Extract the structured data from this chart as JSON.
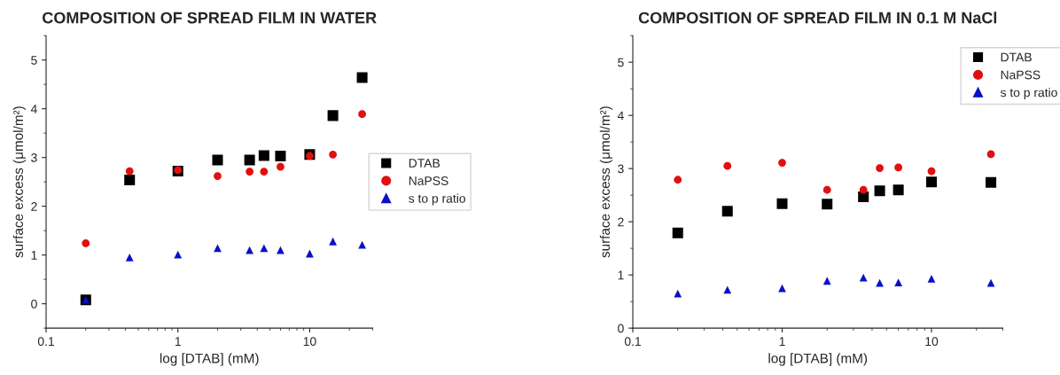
{
  "chart_data": [
    {
      "type": "scatter",
      "title": "COMPOSITION OF SPREAD FILM IN WATER",
      "xlabel": "log [DTAB] (mM)",
      "ylabel": "surface excess (μmol/m²)",
      "log": "x",
      "xlim": [
        0.1,
        30
      ],
      "xticks": [
        0.1,
        1,
        10
      ],
      "ylim": [
        -0.5,
        5.5
      ],
      "yticks": [
        0,
        1,
        2,
        3,
        4,
        5
      ],
      "grid": false,
      "legend": "right",
      "series": [
        {
          "name": "DTAB",
          "color": "#000000",
          "marker": "square",
          "x": [
            0.2,
            0.43,
            1,
            2,
            3.5,
            4.5,
            6,
            10,
            15,
            25
          ],
          "values": [
            0.08,
            2.54,
            2.72,
            2.95,
            2.95,
            3.04,
            3.03,
            3.06,
            3.86,
            4.64
          ]
        },
        {
          "name": "NaPSS",
          "color": "#e01010",
          "marker": "circle",
          "x": [
            0.2,
            0.43,
            1,
            2,
            3.5,
            4.5,
            6,
            10,
            15,
            25
          ],
          "values": [
            1.24,
            2.72,
            2.74,
            2.62,
            2.71,
            2.71,
            2.81,
            3.03,
            3.06,
            3.89
          ]
        },
        {
          "name": "s to p ratio",
          "color": "#0a10c8",
          "marker": "triangle",
          "x": [
            0.2,
            0.43,
            1,
            2,
            3.5,
            4.5,
            6,
            10,
            15,
            25
          ],
          "values": [
            0.08,
            0.95,
            1.01,
            1.14,
            1.1,
            1.14,
            1.1,
            1.03,
            1.28,
            1.21
          ]
        }
      ]
    },
    {
      "type": "scatter",
      "title": "COMPOSITION OF SPREAD FILM IN 0.1 M NaCl",
      "xlabel": "log [DTAB] (mM)",
      "ylabel": "surface excess (μmol/m²)",
      "log": "x",
      "xlim": [
        0.1,
        30
      ],
      "xticks": [
        0.1,
        1,
        10
      ],
      "ylim": [
        0,
        5.5
      ],
      "yticks": [
        0,
        1,
        2,
        3,
        4,
        5
      ],
      "grid": false,
      "legend": "top right",
      "series": [
        {
          "name": "DTAB",
          "color": "#000000",
          "marker": "square",
          "x": [
            0.2,
            0.43,
            1,
            2,
            3.5,
            4.5,
            6,
            10,
            25
          ],
          "values": [
            1.79,
            2.2,
            2.34,
            2.33,
            2.47,
            2.58,
            2.6,
            2.75,
            2.74
          ]
        },
        {
          "name": "NaPSS",
          "color": "#e01010",
          "marker": "circle",
          "x": [
            0.2,
            0.43,
            1,
            2,
            3.5,
            4.5,
            6,
            10,
            25
          ],
          "values": [
            2.79,
            3.05,
            3.11,
            2.6,
            2.6,
            3.01,
            3.02,
            2.95,
            3.27
          ]
        },
        {
          "name": "s to p ratio",
          "color": "#0a10c8",
          "marker": "triangle",
          "x": [
            0.2,
            0.43,
            1,
            2,
            3.5,
            4.5,
            6,
            10,
            25
          ],
          "values": [
            0.65,
            0.72,
            0.75,
            0.89,
            0.95,
            0.85,
            0.86,
            0.93,
            0.85
          ]
        }
      ]
    }
  ]
}
